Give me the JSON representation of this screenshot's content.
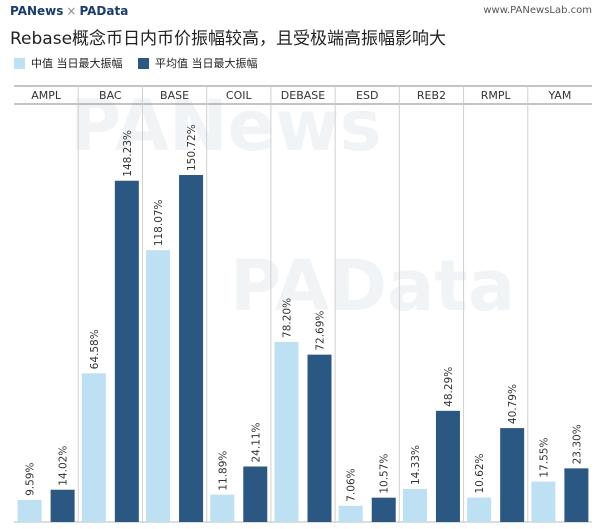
{
  "header": {
    "brand_left": "PANews",
    "brand_sep": "×",
    "brand_right": "PAData",
    "site": "www.PANewsLab.com"
  },
  "chart_data": {
    "type": "bar",
    "title": "Rebase概念币日内币价振幅较高，且受极端高振幅影响大",
    "categories": [
      "AMPL",
      "BAC",
      "BASE",
      "COIL",
      "DEBASE",
      "ESD",
      "REB2",
      "RMPL",
      "YAM"
    ],
    "series": [
      {
        "name": "中值 当日最大振幅",
        "color": "#bde0f3",
        "values": [
          9.59,
          64.58,
          118.07,
          11.89,
          78.2,
          7.06,
          14.33,
          10.62,
          17.55
        ]
      },
      {
        "name": "平均值 当日最大振幅",
        "color": "#2b5783",
        "values": [
          14.02,
          148.23,
          150.72,
          24.11,
          72.69,
          10.57,
          48.29,
          40.79,
          23.3
        ]
      }
    ],
    "value_suffix": "%",
    "ylim": [
      0,
      160
    ],
    "legend_position": "top-left",
    "grid": false
  },
  "watermarks": {
    "a": "PANews",
    "b": "PAData"
  }
}
